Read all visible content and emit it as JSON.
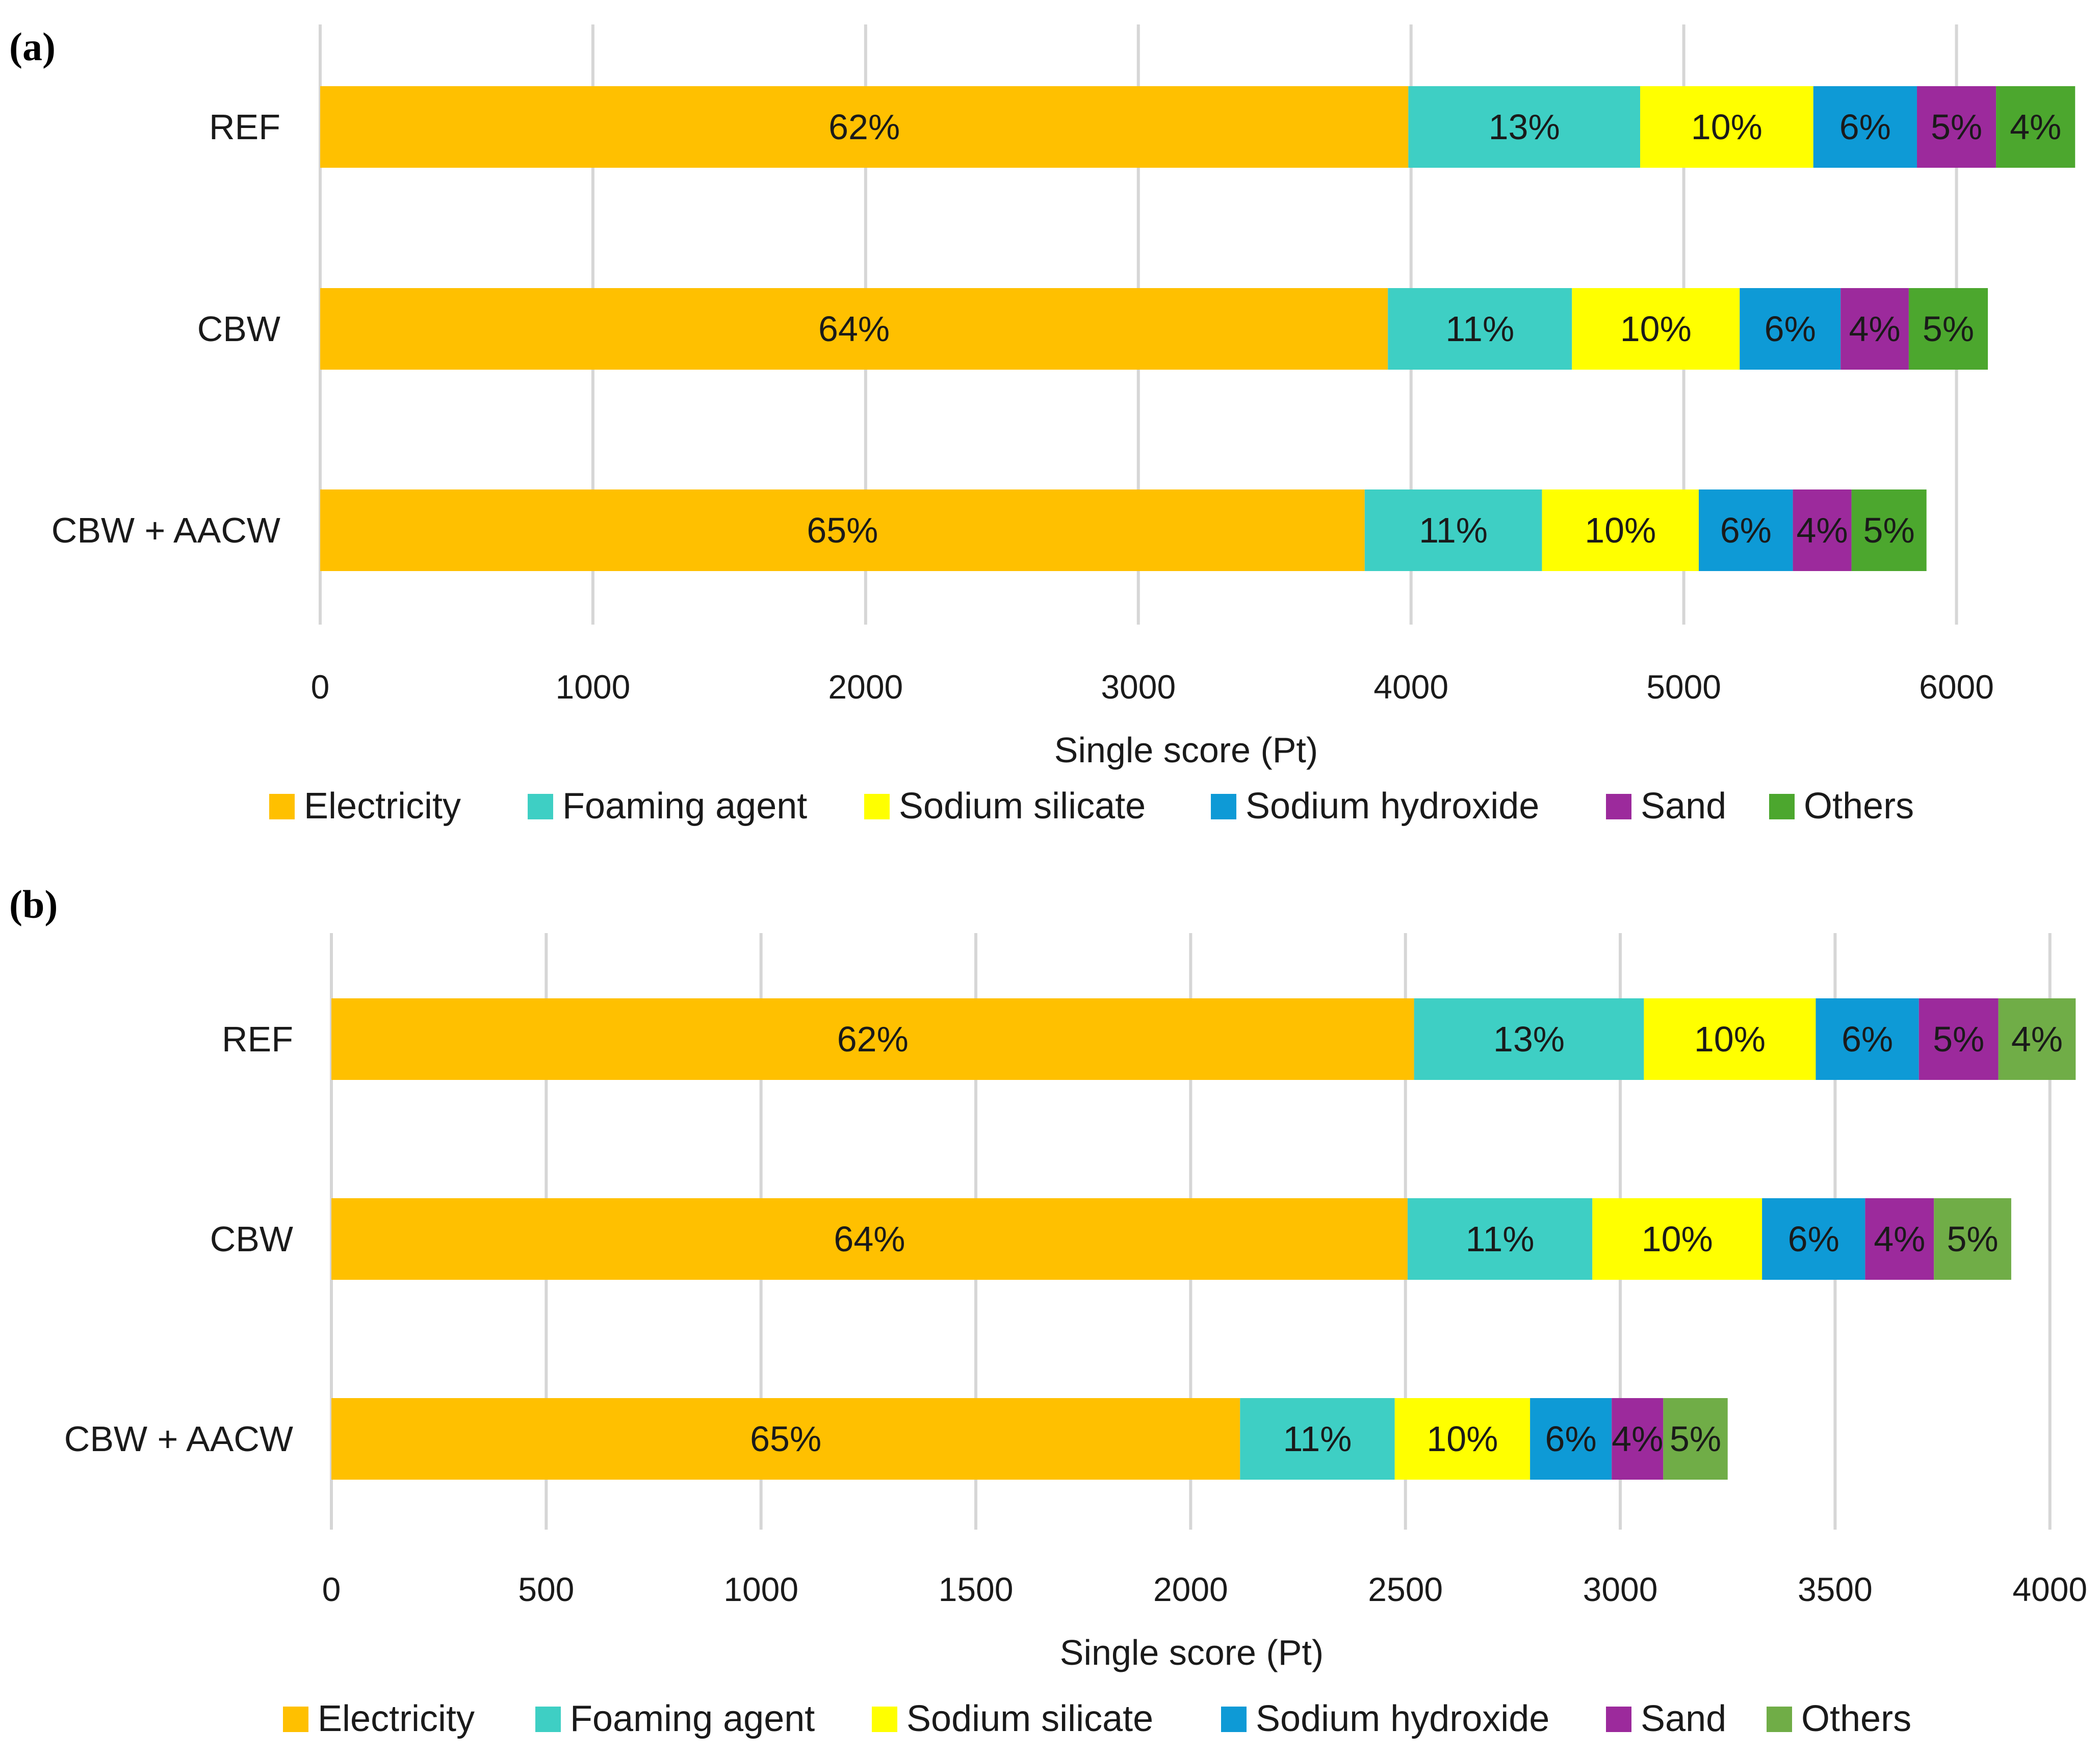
{
  "chart_data": [
    {
      "panel_label": "(a)",
      "type": "bar",
      "orientation": "horizontal",
      "stacked": true,
      "xlabel": "Single score (Pt)",
      "ylabel": "",
      "xlim": [
        0,
        6500
      ],
      "xticks": [
        0,
        1000,
        2000,
        3000,
        4000,
        5000,
        6000
      ],
      "grid": true,
      "legend": "bottom",
      "categories": [
        "REF",
        "CBW",
        "CBW + AACW"
      ],
      "series": [
        {
          "name": "Electricity",
          "color": "#FFC000",
          "values": [
            3990,
            3915,
            3830
          ],
          "labels": [
            "62%",
            "64%",
            "65%"
          ]
        },
        {
          "name": "Foaming agent",
          "color": "#3ECFC4",
          "values": [
            850,
            675,
            650
          ],
          "labels": [
            "13%",
            "11%",
            "11%"
          ]
        },
        {
          "name": "Sodium silicate",
          "color": "#FFFF00",
          "values": [
            635,
            615,
            575
          ],
          "labels": [
            "10%",
            "10%",
            "10%"
          ]
        },
        {
          "name": "Sodium hydroxide",
          "color": "#0E9AD6",
          "values": [
            380,
            370,
            345
          ],
          "labels": [
            "6%",
            "6%",
            "6%"
          ]
        },
        {
          "name": "Sand",
          "color": "#9C2A9C",
          "values": [
            290,
            250,
            215
          ],
          "labels": [
            "5%",
            "4%",
            "4%"
          ]
        },
        {
          "name": "Others",
          "color": "#4CA72E",
          "values": [
            290,
            290,
            275
          ],
          "labels": [
            "4%",
            "5%",
            "5%"
          ]
        }
      ]
    },
    {
      "panel_label": "(b)",
      "type": "bar",
      "orientation": "horizontal",
      "stacked": true,
      "xlabel": "Single score (Pt)",
      "ylabel": "",
      "xlim": [
        0,
        4100
      ],
      "xticks": [
        0,
        500,
        1000,
        1500,
        2000,
        2500,
        3000,
        3500,
        4000
      ],
      "grid": true,
      "legend": "bottom",
      "categories": [
        "REF",
        "CBW",
        "CBW + AACW"
      ],
      "series": [
        {
          "name": "Electricity",
          "color": "#FFC000",
          "values": [
            2520,
            2505,
            2115
          ],
          "labels": [
            "62%",
            "64%",
            "65%"
          ]
        },
        {
          "name": "Foaming agent",
          "color": "#3ECFC4",
          "values": [
            535,
            430,
            360
          ],
          "labels": [
            "13%",
            "11%",
            "11%"
          ]
        },
        {
          "name": "Sodium silicate",
          "color": "#FFFF00",
          "values": [
            400,
            395,
            315
          ],
          "labels": [
            "10%",
            "10%",
            "10%"
          ]
        },
        {
          "name": "Sodium hydroxide",
          "color": "#0E9AD6",
          "values": [
            240,
            240,
            190
          ],
          "labels": [
            "6%",
            "6%",
            "6%"
          ]
        },
        {
          "name": "Sand",
          "color": "#9C2A9C",
          "values": [
            185,
            160,
            120
          ],
          "labels": [
            "5%",
            "4%",
            "4%"
          ]
        },
        {
          "name": "Others",
          "color": "#70AD47",
          "values": [
            180,
            180,
            150
          ],
          "labels": [
            "4%",
            "5%",
            "5%"
          ]
        }
      ]
    }
  ]
}
